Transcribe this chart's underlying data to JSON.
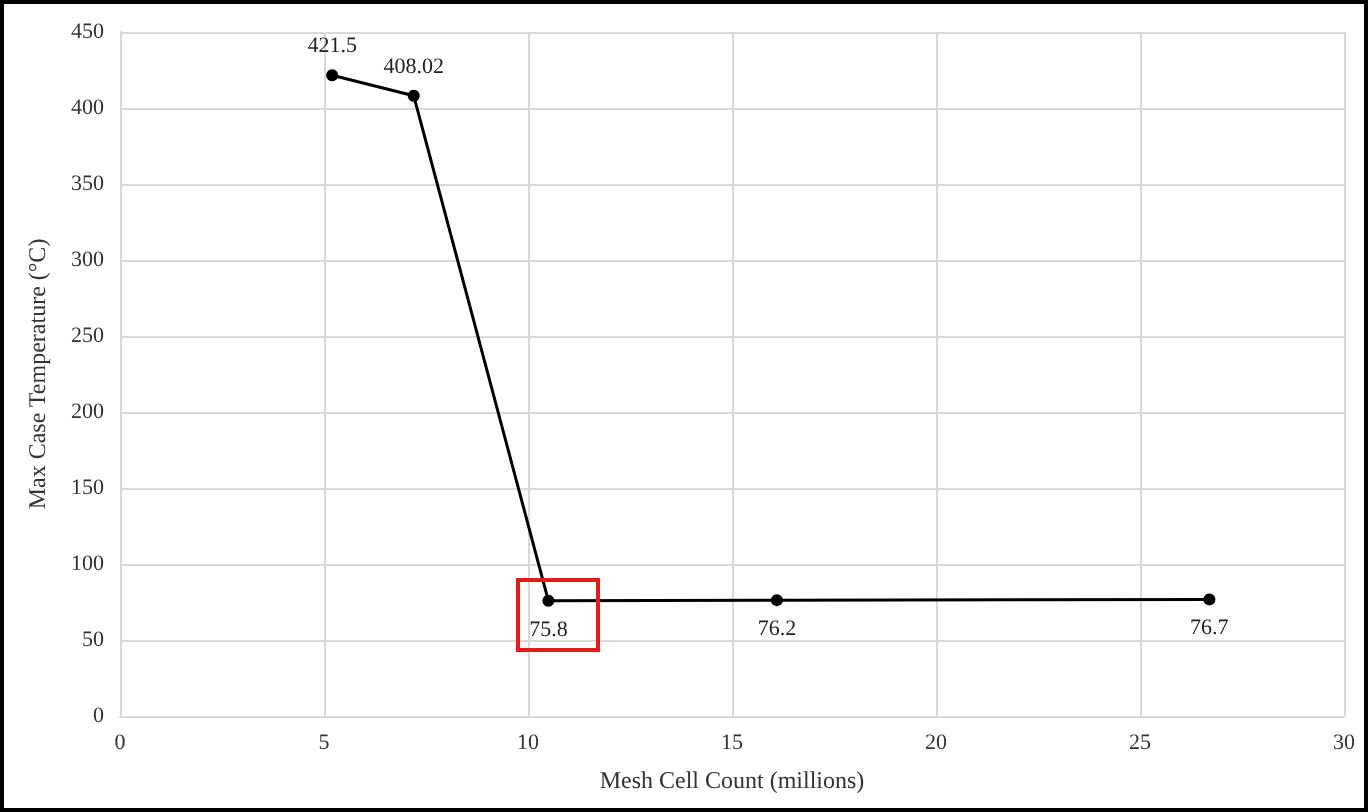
{
  "chart_data": {
    "type": "line",
    "xlabel": "Mesh Cell Count (millions)",
    "ylabel": "Max Case Temperature (°C)",
    "x": [
      5.2,
      7.2,
      10.5,
      16.1,
      26.7
    ],
    "series": [
      {
        "color": "#000000",
        "values": [
          421.5,
          408.02,
          75.8,
          76.2,
          76.7
        ]
      }
    ],
    "xlim": [
      0,
      30
    ],
    "xticks": [
      0,
      5,
      10,
      15,
      20,
      25,
      30
    ],
    "ylim": [
      0,
      450
    ],
    "yticks": [
      0,
      50,
      100,
      150,
      200,
      250,
      300,
      350,
      400,
      450
    ],
    "grid": true,
    "marker": "circle",
    "line_style": "solid",
    "data_labels": true
  }
}
